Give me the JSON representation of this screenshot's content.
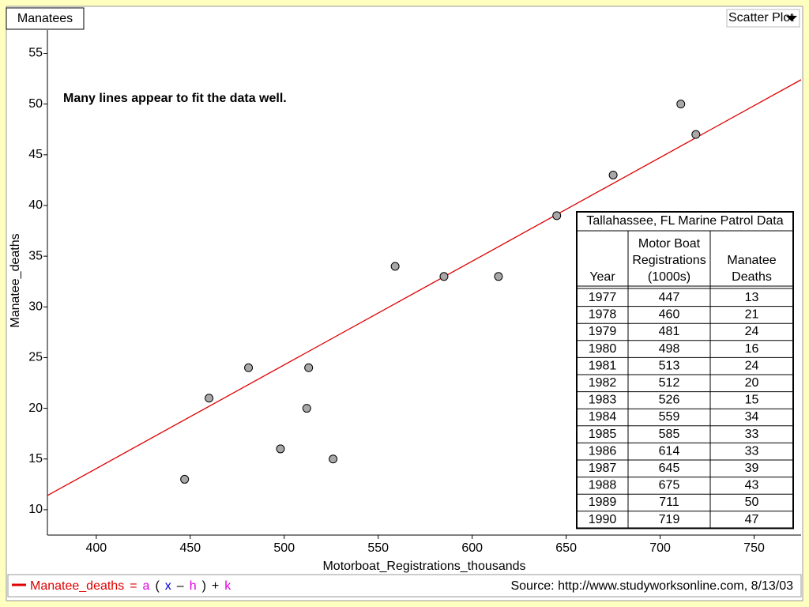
{
  "tab_title": "Manatees",
  "view_menu": "Scatter Plot",
  "chart_data": {
    "type": "scatter",
    "annotation": "Many lines appear to fit the data well.",
    "x_label": "Motorboat_Registrations_thousands",
    "y_label": "Manatee_deaths",
    "x": [
      447,
      460,
      481,
      498,
      513,
      512,
      526,
      559,
      585,
      614,
      645,
      675,
      711,
      719
    ],
    "y": [
      13,
      21,
      24,
      16,
      24,
      20,
      15,
      34,
      33,
      33,
      39,
      43,
      50,
      47
    ],
    "color": "#a8a8a8",
    "line": {
      "color": "#e00000",
      "x": [
        374,
        775
      ],
      "y": [
        11.4,
        52.4
      ]
    },
    "xlim": [
      374,
      775
    ],
    "ylim": [
      7.5,
      57.3
    ],
    "xticks": [
      400,
      450,
      500,
      550,
      600,
      650,
      700,
      750
    ],
    "yticks": [
      10,
      15,
      20,
      25,
      30,
      35,
      40,
      45,
      50,
      55
    ]
  },
  "table": {
    "title": "Tallahassee, FL Marine Patrol Data",
    "headers": [
      [
        "Year"
      ],
      [
        "Motor Boat",
        "Registrations",
        "(1000s)"
      ],
      [
        "Manatee",
        "Deaths"
      ]
    ],
    "years": [
      "1977",
      "1978",
      "1979",
      "1980",
      "1981",
      "1982",
      "1983",
      "1984",
      "1985",
      "1986",
      "1987",
      "1988",
      "1989",
      "1990"
    ]
  },
  "formula": {
    "parts": [
      "Manatee_deaths",
      "=",
      "a",
      "(",
      "x",
      "–",
      "h",
      ")",
      "+",
      "k"
    ],
    "colors": [
      "#e00000",
      "#e00000",
      "#e000e0",
      "#000000",
      "#0000e0",
      "#000000",
      "#e000e0",
      "#000000",
      "#000000",
      "#e000e0"
    ]
  },
  "source": "Source: http://www.studyworksonline.com, 8/13/03"
}
